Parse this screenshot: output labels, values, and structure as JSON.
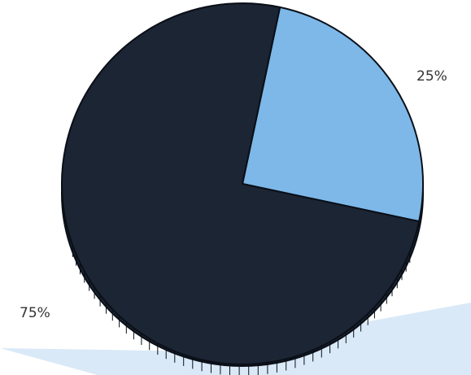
{
  "chart_data": {
    "type": "pie",
    "title": "",
    "slices": [
      {
        "value": 25,
        "label": "25%",
        "color": "#7db8e8"
      },
      {
        "value": 75,
        "label": "75%",
        "color": "#1c2533"
      }
    ],
    "edge_color": "#0a0f17",
    "background_accent_color": "#d9e9f7"
  }
}
